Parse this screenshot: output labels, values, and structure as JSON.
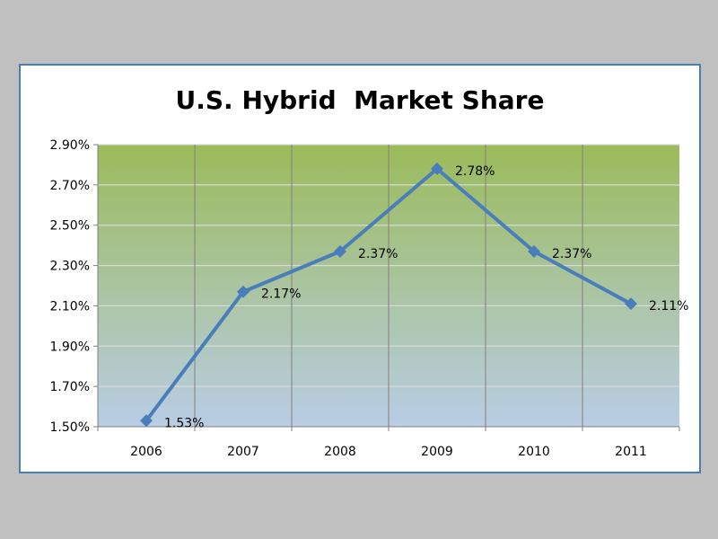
{
  "chart_data": {
    "type": "line",
    "title": "U.S. Hybrid  Market Share",
    "categories": [
      "2006",
      "2007",
      "2008",
      "2009",
      "2010",
      "2011"
    ],
    "series": [
      {
        "values": [
          1.53,
          2.17,
          2.37,
          2.78,
          2.37,
          2.11
        ],
        "data_labels": [
          "1.53%",
          "2.17%",
          "2.37%",
          "2.78%",
          "2.37%",
          "2.11%"
        ]
      }
    ],
    "y_ticks": [
      "1.50%",
      "1.70%",
      "1.90%",
      "2.10%",
      "2.30%",
      "2.50%",
      "2.70%",
      "2.90%"
    ],
    "ylim": [
      1.5,
      2.9
    ],
    "y_step": 0.2,
    "grid": true,
    "marker": "diamond",
    "colors": {
      "line": "#4a7ebb",
      "plot_top": "#9bbb59",
      "plot_bottom": "#b9cde5",
      "gridline": "#d9d9d9",
      "vgridline": "#808080",
      "frame_border": "#4a7ebb"
    }
  }
}
